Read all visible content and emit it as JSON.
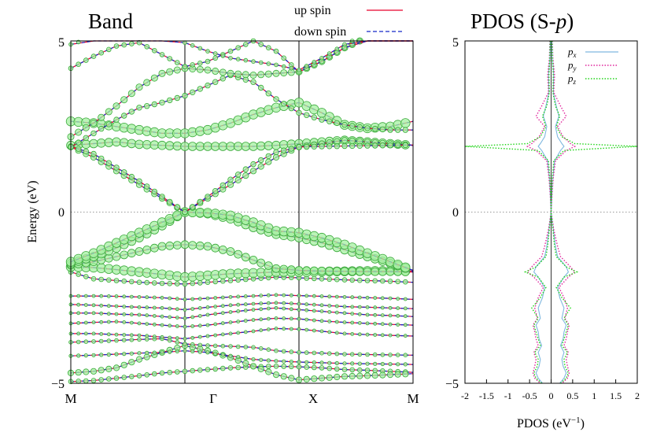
{
  "chart_data": [
    {
      "type": "line",
      "panel": "band",
      "title": "Band",
      "ylabel": "Energy (eV)",
      "ylim": [
        -5,
        5
      ],
      "y_ticks": [
        "5",
        "0",
        "−5"
      ],
      "k_labels": [
        "M",
        "Γ",
        "X",
        "M"
      ],
      "fermi_level": 0,
      "legend": {
        "placement": "top-right-outside",
        "entries": [
          {
            "name": "up spin",
            "style": "solid",
            "color": "#e8002a"
          },
          {
            "name": "down spin",
            "style": "dashed",
            "color": "#1428c8"
          }
        ]
      },
      "k_points": [
        0,
        0.2,
        0.4,
        0.6,
        0.8,
        1.0,
        1.2,
        1.4,
        1.6,
        1.8,
        2.0,
        2.2,
        2.4,
        2.6,
        2.8,
        3.0
      ],
      "series": [
        {
          "values": [
            -4.95,
            -4.92,
            -4.85,
            -4.78,
            -4.7,
            -4.65,
            -4.6,
            -4.55,
            -4.52,
            -4.5,
            -4.52,
            -4.55,
            -4.6,
            -4.62,
            -4.65,
            -4.68
          ],
          "pz_weight": 0.3
        },
        {
          "values": [
            -4.7,
            -4.65,
            -4.55,
            -4.3,
            -4.1,
            -3.9,
            -4.05,
            -4.25,
            -4.5,
            -4.75,
            -4.9,
            -4.85,
            -4.8,
            -4.78,
            -4.75,
            -4.72
          ],
          "pz_weight": 0.5
        },
        {
          "values": [
            -4.2,
            -4.18,
            -4.15,
            -4.12,
            -4.1,
            -4.05,
            -4.1,
            -4.2,
            -4.3,
            -4.35,
            -4.38,
            -4.4,
            -4.42,
            -4.43,
            -4.44,
            -4.45
          ],
          "pz_weight": 0.15
        },
        {
          "values": [
            -3.8,
            -3.78,
            -3.75,
            -3.72,
            -3.7,
            -3.85,
            -3.9,
            -3.92,
            -3.95,
            -4.05,
            -4.1,
            -4.12,
            -4.15,
            -4.16,
            -4.17,
            -4.18
          ],
          "pz_weight": 0.2
        },
        {
          "values": [
            -3.55,
            -3.55,
            -3.58,
            -3.6,
            -3.65,
            -3.7,
            -3.62,
            -3.55,
            -3.48,
            -3.4,
            -3.42,
            -3.48,
            -3.55,
            -3.58,
            -3.6,
            -3.62
          ],
          "pz_weight": 0.1
        },
        {
          "values": [
            -3.25,
            -3.22,
            -3.2,
            -3.25,
            -3.3,
            -3.35,
            -3.3,
            -3.22,
            -3.15,
            -3.1,
            -3.12,
            -3.18,
            -3.22,
            -3.25,
            -3.28,
            -3.3
          ],
          "pz_weight": 0.1
        },
        {
          "values": [
            -2.95,
            -2.95,
            -2.98,
            -3.0,
            -3.05,
            -3.1,
            -3.0,
            -2.92,
            -2.85,
            -2.8,
            -2.85,
            -2.9,
            -2.95,
            -3.0,
            -3.02,
            -3.05
          ],
          "pz_weight": 0.1
        },
        {
          "values": [
            -2.7,
            -2.72,
            -2.75,
            -2.78,
            -2.8,
            -2.85,
            -2.78,
            -2.72,
            -2.68,
            -2.65,
            -2.68,
            -2.72,
            -2.76,
            -2.78,
            -2.8,
            -2.82
          ],
          "pz_weight": 0.1
        },
        {
          "values": [
            -2.45,
            -2.45,
            -2.46,
            -2.48,
            -2.5,
            -2.55,
            -2.52,
            -2.48,
            -2.45,
            -2.42,
            -2.44,
            -2.46,
            -2.48,
            -2.5,
            -2.52,
            -2.55
          ],
          "pz_weight": 0.1
        },
        {
          "values": [
            -1.75,
            -1.95,
            -2.0,
            -2.05,
            -2.08,
            -2.1,
            -2.05,
            -2.0,
            -1.95,
            -1.9,
            -1.92,
            -1.95,
            -1.98,
            -2.0,
            -2.02,
            -2.05
          ],
          "pz_weight": 0.3
        },
        {
          "values": [
            -1.6,
            -1.62,
            -1.68,
            -1.75,
            -1.82,
            -1.9,
            -1.85,
            -1.8,
            -1.78,
            -1.75,
            -1.75,
            -1.74,
            -1.73,
            -1.72,
            -1.72,
            -1.72
          ],
          "pz_weight": 1.0
        },
        {
          "values": [
            -1.55,
            -1.45,
            -1.3,
            -1.15,
            -1.0,
            -0.95,
            -1.0,
            -1.15,
            -1.4,
            -1.65,
            -1.7,
            -1.72,
            -1.73,
            -1.74,
            -1.74,
            -1.75
          ],
          "pz_weight": 0.8
        },
        {
          "values": [
            -1.5,
            -1.3,
            -1.05,
            -0.75,
            -0.4,
            0.0,
            -0.05,
            -0.2,
            -0.45,
            -0.65,
            -0.75,
            -0.9,
            -1.1,
            -1.3,
            -1.5,
            -1.7
          ],
          "pz_weight": 0.9
        },
        {
          "values": [
            -1.45,
            -1.2,
            -0.9,
            -0.6,
            -0.3,
            0.0,
            -0.02,
            -0.1,
            -0.3,
            -0.55,
            -0.6,
            -0.75,
            -0.95,
            -1.2,
            -1.45,
            -1.7
          ],
          "pz_weight": 1.0
        },
        {
          "values": [
            1.95,
            2.0,
            2.05,
            1.98,
            1.95,
            1.92,
            1.92,
            1.92,
            1.92,
            1.95,
            2.0,
            2.05,
            2.1,
            2.05,
            2.0,
            1.95
          ],
          "pz_weight": 0.9
        },
        {
          "values": [
            1.9,
            1.6,
            1.2,
            0.8,
            0.4,
            0.0,
            0.4,
            0.8,
            1.2,
            1.6,
            1.9,
            2.0,
            2.1,
            2.05,
            2.0,
            1.95
          ],
          "pz_weight": 0.5
        },
        {
          "values": [
            1.92,
            1.7,
            1.3,
            0.9,
            0.45,
            0.0,
            0.45,
            0.95,
            1.4,
            1.75,
            1.9,
            1.92,
            1.93,
            1.94,
            1.95,
            1.96
          ],
          "pz_weight": 0.4
        },
        {
          "values": [
            2.65,
            2.6,
            2.5,
            2.4,
            2.3,
            2.3,
            2.4,
            2.6,
            2.85,
            3.05,
            3.2,
            2.9,
            2.55,
            2.45,
            2.5,
            2.65
          ],
          "pz_weight": 1.0
        },
        {
          "values": [
            1.9,
            2.3,
            2.7,
            3.05,
            3.2,
            3.4,
            3.7,
            4.0,
            3.8,
            3.3,
            2.9,
            2.7,
            2.55,
            2.45,
            2.4,
            2.4
          ],
          "pz_weight": 0.4
        },
        {
          "values": [
            2.2,
            2.6,
            3.1,
            3.65,
            4.05,
            4.2,
            4.15,
            4.05,
            4.0,
            4.05,
            4.1,
            4.4,
            4.8,
            5.1,
            5.4,
            5.6
          ],
          "pz_weight": 0.6
        },
        {
          "values": [
            4.2,
            4.55,
            4.85,
            4.95,
            4.6,
            4.25,
            4.4,
            4.7,
            5.0,
            4.7,
            4.1,
            4.4,
            4.8,
            5.1,
            5.4,
            5.6
          ],
          "pz_weight": 0.3
        },
        {
          "values": [
            4.9,
            5.1,
            5.4,
            5.6,
            5.8,
            4.95,
            4.7,
            4.5,
            4.4,
            4.3,
            4.15,
            4.5,
            4.9,
            5.2,
            5.5,
            5.8
          ],
          "pz_weight": 0.2
        }
      ]
    },
    {
      "type": "line",
      "panel": "pdos",
      "title": "PDOS (S-p)",
      "title_text": "PDOS (S-",
      "title_italic": "p",
      "title_close": ")",
      "xlabel": "PDOS (eV−1)",
      "xlabel_text": "PDOS (eV",
      "xlabel_sup": "−1",
      "xlabel_close": ")",
      "xlim": [
        -2,
        2
      ],
      "ylim": [
        -5,
        5
      ],
      "x_ticks": [
        "-2",
        "-1.5",
        "-1",
        "-0.5",
        "0",
        "0.5",
        "1",
        "1.5",
        "2"
      ],
      "y_ticks": [
        "5",
        "0",
        "−5"
      ],
      "legend": {
        "placement": "top-right",
        "entries": [
          {
            "name": "p",
            "sub": "x",
            "style": "solid",
            "color": "#7fb8e0"
          },
          {
            "name": "p",
            "sub": "y",
            "style": "dotted",
            "color": "#e0249c"
          },
          {
            "name": "p",
            "sub": "z",
            "style": "dotted",
            "color": "#22d41a"
          }
        ]
      },
      "energy": [
        5.0,
        4.5,
        4.0,
        3.5,
        3.1,
        2.8,
        2.5,
        2.2,
        2.0,
        1.92,
        1.8,
        1.5,
        1.0,
        0.5,
        0.0,
        -0.5,
        -1.0,
        -1.3,
        -1.6,
        -1.75,
        -1.9,
        -2.2,
        -2.5,
        -2.8,
        -3.1,
        -3.3,
        -3.5,
        -3.7,
        -3.9,
        -4.1,
        -4.3,
        -4.5,
        -4.7,
        -4.85,
        -5.0
      ],
      "series": [
        {
          "name": "px",
          "values": [
            0.02,
            0.03,
            0.06,
            0.05,
            0.12,
            0.18,
            0.1,
            0.15,
            0.25,
            0.3,
            0.22,
            0.08,
            0.04,
            0.02,
            0.0,
            0.05,
            0.1,
            0.15,
            0.35,
            0.4,
            0.3,
            0.15,
            0.2,
            0.3,
            0.25,
            0.35,
            0.3,
            0.28,
            0.22,
            0.3,
            0.25,
            0.28,
            0.35,
            0.3,
            0.2
          ]
        },
        {
          "name": "py",
          "values": [
            0.03,
            0.04,
            0.08,
            0.06,
            0.22,
            0.35,
            0.15,
            0.28,
            0.45,
            0.55,
            0.35,
            0.1,
            0.05,
            0.02,
            0.0,
            0.06,
            0.15,
            0.22,
            0.45,
            0.55,
            0.4,
            0.18,
            0.3,
            0.38,
            0.32,
            0.42,
            0.38,
            0.35,
            0.3,
            0.4,
            0.35,
            0.38,
            0.42,
            0.38,
            0.25
          ]
        },
        {
          "name": "pz",
          "values": [
            0.02,
            0.03,
            0.05,
            0.04,
            0.1,
            0.2,
            0.12,
            0.25,
            0.55,
            2.0,
            0.3,
            0.06,
            0.03,
            0.01,
            0.0,
            0.04,
            0.08,
            0.12,
            0.35,
            0.6,
            0.3,
            0.12,
            0.25,
            0.45,
            0.3,
            0.4,
            0.35,
            0.3,
            0.25,
            0.38,
            0.3,
            0.32,
            0.4,
            0.35,
            0.22
          ]
        }
      ]
    }
  ]
}
